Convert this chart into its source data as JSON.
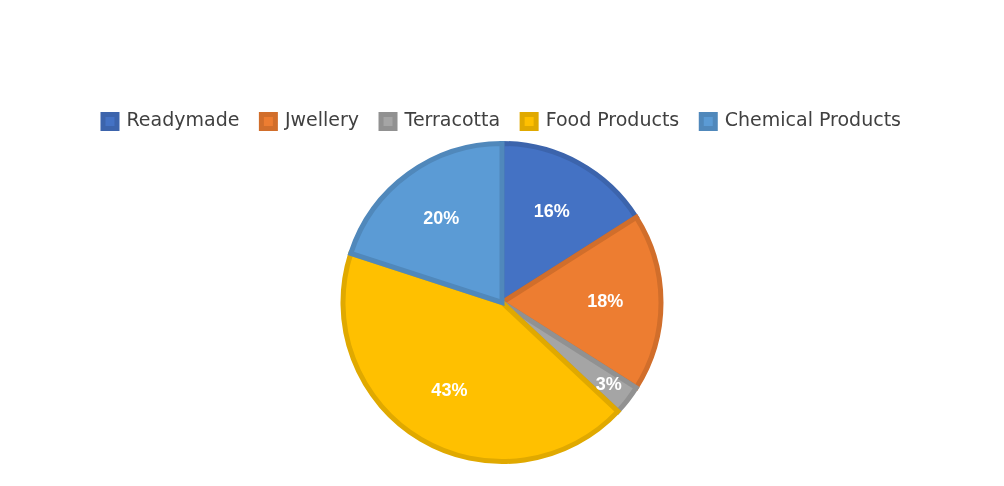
{
  "chart_data": {
    "type": "pie",
    "categories": [
      "Readymade",
      "Jwellery",
      "Terracotta",
      "Food Products",
      "Chemical Products"
    ],
    "values": [
      16,
      18,
      3,
      43,
      20
    ],
    "colors": [
      "#4472c4",
      "#ed7d31",
      "#a5a5a5",
      "#ffc000",
      "#5b9bd5"
    ],
    "value_labels": [
      "16%",
      "18%",
      "3%",
      "43%",
      "20%"
    ],
    "legend": "top"
  }
}
